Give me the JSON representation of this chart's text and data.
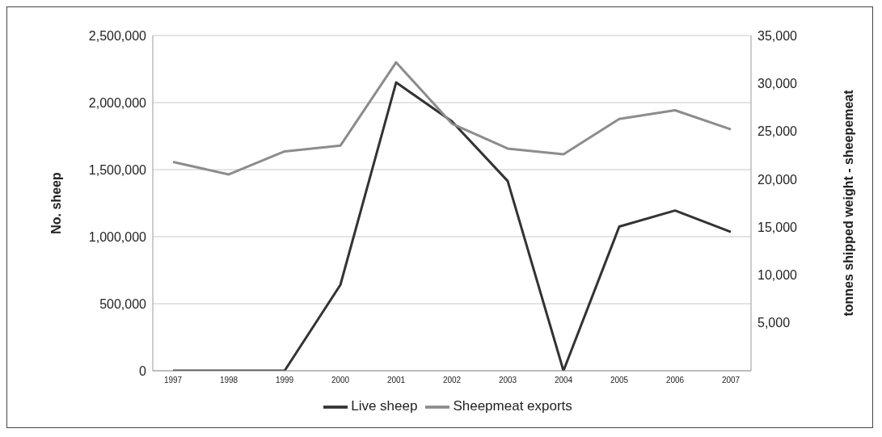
{
  "chart_data": {
    "type": "line",
    "ylabel": "No. sheep",
    "y2label": "tonnes shipped weight - sheepemeat",
    "categories": [
      "1997",
      "1998",
      "1999",
      "2000",
      "2001",
      "2002",
      "2003",
      "2004",
      "2005",
      "2006",
      "2007"
    ],
    "series": [
      {
        "name": "Live sheep",
        "color": "#333333",
        "values": [
          0,
          0,
          0,
          640000,
          2150000,
          1860000,
          1415000,
          0,
          1075000,
          1195000,
          1035000
        ]
      },
      {
        "name": "Sheepmeat exports",
        "color": "#8c8c8c",
        "axis": "y2",
        "values": [
          21800,
          20500,
          22900,
          23500,
          32200,
          25800,
          23200,
          22600,
          26300,
          27200,
          25200
        ]
      }
    ],
    "ylim": [
      0,
      2500000
    ],
    "yticks": [
      0,
      {
        "value": 500000,
        "label": "500,000"
      },
      {
        "value": 1000000,
        "label": "1,000,000"
      },
      {
        "value": 1500000,
        "label": "1,500,000"
      },
      {
        "value": 2000000,
        "label": "2,000,000"
      },
      {
        "value": 2500000,
        "label": "2,500,000"
      }
    ],
    "y2lim": [
      0,
      35000
    ],
    "y2ticks": [
      {
        "value": 5000,
        "label": "5,000"
      },
      {
        "value": 10000,
        "label": "10,000"
      },
      {
        "value": 15000,
        "label": "15,000"
      },
      {
        "value": 20000,
        "label": "20,000"
      },
      {
        "value": 25000,
        "label": "25,000"
      },
      {
        "value": 30000,
        "label": "30,000"
      },
      {
        "value": 35000,
        "label": "35,000"
      }
    ],
    "grid": "y",
    "legend": "bottom",
    "marker": "none",
    "line_style": "solid"
  }
}
